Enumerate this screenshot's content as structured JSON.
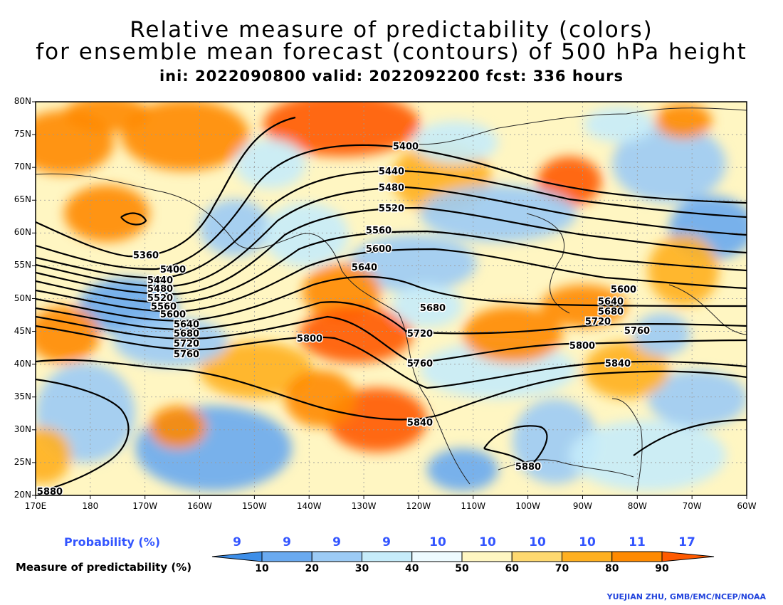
{
  "header": {
    "title_line1": "Relative measure of predictability (colors)",
    "title_line2": "for ensemble mean forecast (contours) of 500 hPa height",
    "subtitle": "ini: 2022090800 valid: 2022092200 fcst: 336 hours"
  },
  "map": {
    "lat_ticks": [
      "80N",
      "75N",
      "70N",
      "65N",
      "60N",
      "55N",
      "50N",
      "45N",
      "40N",
      "35N",
      "30N",
      "25N",
      "20N"
    ],
    "lon_ticks": [
      "170E",
      "180",
      "170W",
      "160W",
      "150W",
      "140W",
      "130W",
      "120W",
      "110W",
      "100W",
      "90W",
      "80W",
      "70W",
      "60W"
    ],
    "contour_labels": [
      {
        "text": "5400"
      },
      {
        "text": "5440"
      },
      {
        "text": "5480"
      },
      {
        "text": "5520"
      },
      {
        "text": "5560"
      },
      {
        "text": "5600"
      },
      {
        "text": "5640"
      },
      {
        "text": "5680"
      },
      {
        "text": "5720"
      },
      {
        "text": "5760"
      },
      {
        "text": "5800"
      },
      {
        "text": "5840"
      },
      {
        "text": "5360"
      },
      {
        "text": "5400"
      },
      {
        "text": "5440"
      },
      {
        "text": "5480"
      },
      {
        "text": "5520"
      },
      {
        "text": "5560"
      },
      {
        "text": "5600"
      },
      {
        "text": "5640"
      },
      {
        "text": "5680"
      },
      {
        "text": "5720"
      },
      {
        "text": "5760"
      },
      {
        "text": "5600"
      },
      {
        "text": "5640"
      },
      {
        "text": "5680"
      },
      {
        "text": "5720"
      },
      {
        "text": "5760"
      },
      {
        "text": "5800"
      },
      {
        "text": "5840"
      },
      {
        "text": "5880"
      },
      {
        "text": "5880"
      }
    ]
  },
  "legend": {
    "probability_label": "Probability (%)",
    "measure_label": "Measure of predictability (%)",
    "probability_values": [
      "9",
      "9",
      "9",
      "9",
      "10",
      "10",
      "10",
      "10",
      "11",
      "17"
    ],
    "colorbar_ticks": [
      "10",
      "20",
      "30",
      "40",
      "50",
      "60",
      "70",
      "80",
      "90"
    ],
    "colors": [
      "#3d8ee8",
      "#6aaaf0",
      "#9ccbf5",
      "#c6ecfa",
      "#eefbff",
      "#fff6c2",
      "#ffd970",
      "#ffb020",
      "#ff8a00",
      "#ff5a00"
    ]
  },
  "credit": "YUEJIAN ZHU, GMB/EMC/NCEP/NOAA"
}
